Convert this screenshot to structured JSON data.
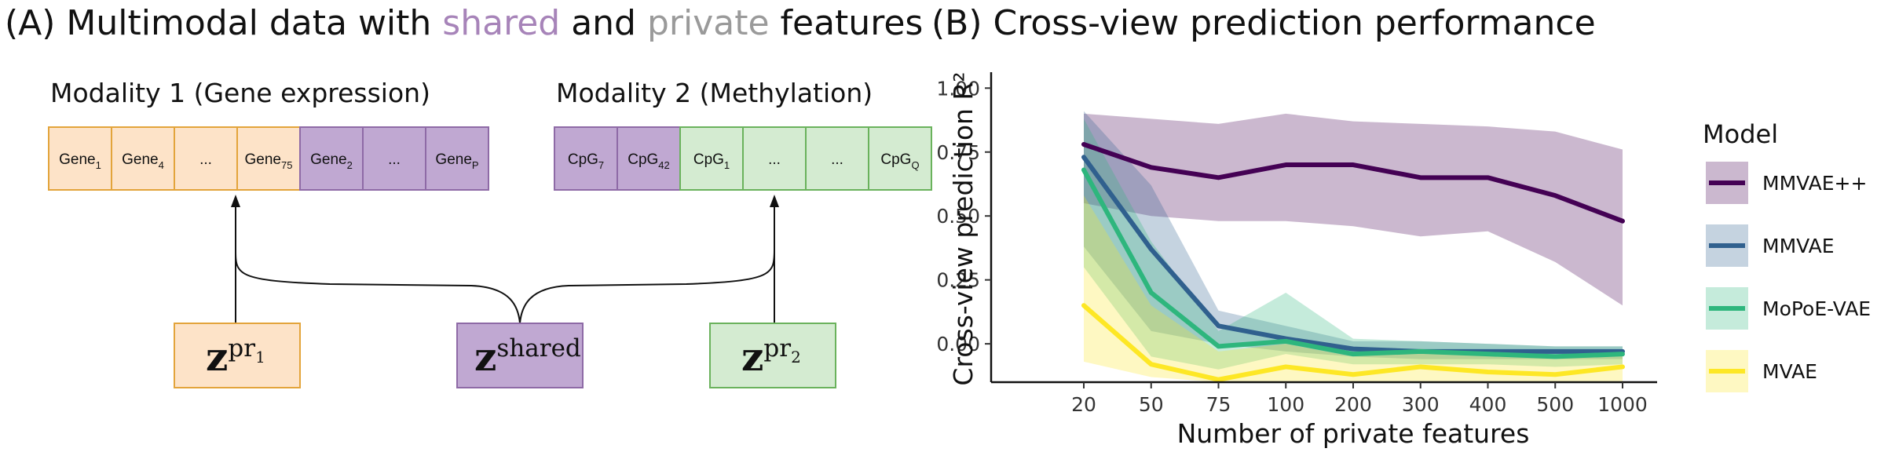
{
  "panel_a": {
    "title_prefix": "(A) Multimodal data with ",
    "title_shared": "shared",
    "title_mid": " and ",
    "title_private": "private",
    "title_suffix": " features",
    "modality1": {
      "label": "Modality 1 (Gene expression)",
      "cells": [
        {
          "base": "Gene",
          "sub": "1",
          "kind": "private"
        },
        {
          "base": "Gene",
          "sub": "4",
          "kind": "private"
        },
        {
          "base": "...",
          "sub": "",
          "kind": "private"
        },
        {
          "base": "Gene",
          "sub": "75",
          "kind": "private"
        },
        {
          "base": "Gene",
          "sub": "2",
          "kind": "shared"
        },
        {
          "base": "...",
          "sub": "",
          "kind": "shared"
        },
        {
          "base": "Gene",
          "sub": "P",
          "kind": "shared"
        }
      ]
    },
    "modality2": {
      "label": "Modality 2 (Methylation)",
      "cells": [
        {
          "base": "CpG",
          "sub": "7",
          "kind": "shared"
        },
        {
          "base": "CpG",
          "sub": "42",
          "kind": "shared"
        },
        {
          "base": "CpG",
          "sub": "1",
          "kind": "private"
        },
        {
          "base": "...",
          "sub": "",
          "kind": "private"
        },
        {
          "base": "...",
          "sub": "",
          "kind": "private"
        },
        {
          "base": "CpG",
          "sub": "Q",
          "kind": "private"
        }
      ]
    },
    "latents": {
      "z1": {
        "base": "z",
        "sup": "pr",
        "sub": "1"
      },
      "shared": {
        "base": "z",
        "sup": "shared"
      },
      "z2": {
        "base": "z",
        "sup": "pr",
        "sub": "2"
      }
    }
  },
  "panel_b": {
    "title": "(B) Cross-view prediction performance"
  },
  "colors": {
    "shared_fill": "#c0a8d2",
    "shared_stroke": "#8e6aa6",
    "m1_private_fill": "#fde3c8",
    "m1_private_stroke": "#e3a43b",
    "m2_private_fill": "#d4ebd1",
    "m2_private_stroke": "#6ab25c"
  },
  "chart_data": {
    "type": "line",
    "title": "",
    "xlabel": "Number of private features",
    "ylabel": "Cross-view prediction R²",
    "categories": [
      "20",
      "50",
      "75",
      "100",
      "200",
      "300",
      "400",
      "500",
      "1000"
    ],
    "ylim": [
      -0.15,
      1.05
    ],
    "yticks": [
      0.0,
      0.25,
      0.5,
      0.75,
      1.0
    ],
    "ytick_labels": [
      "0.00",
      "0.25",
      "0.50",
      "0.75",
      "1.00"
    ],
    "legend_title": "Model",
    "legend_position": "right",
    "series": [
      {
        "name": "MMVAE++",
        "color": "#440154",
        "values": [
          0.78,
          0.69,
          0.65,
          0.7,
          0.7,
          0.65,
          0.65,
          0.58,
          0.48
        ],
        "lower": [
          0.55,
          0.5,
          0.48,
          0.48,
          0.46,
          0.42,
          0.44,
          0.32,
          0.15
        ],
        "upper": [
          0.9,
          0.88,
          0.86,
          0.9,
          0.87,
          0.86,
          0.85,
          0.83,
          0.76
        ]
      },
      {
        "name": "MMVAE",
        "color": "#30608e",
        "values": [
          0.73,
          0.37,
          0.07,
          0.02,
          -0.02,
          -0.03,
          -0.03,
          -0.03,
          -0.03
        ],
        "lower": [
          0.38,
          0.05,
          0.0,
          -0.03,
          -0.05,
          -0.06,
          -0.06,
          -0.06,
          -0.06
        ],
        "upper": [
          0.91,
          0.62,
          0.13,
          0.07,
          0.01,
          0.01,
          0.0,
          -0.01,
          -0.01
        ]
      },
      {
        "name": "MoPoE-VAE",
        "color": "#2eb67d",
        "values": [
          0.68,
          0.2,
          -0.01,
          0.01,
          -0.04,
          -0.03,
          -0.04,
          -0.05,
          -0.04
        ],
        "lower": [
          0.3,
          -0.05,
          -0.1,
          -0.04,
          -0.08,
          -0.08,
          -0.08,
          -0.09,
          -0.08
        ],
        "upper": [
          0.88,
          0.4,
          0.05,
          0.2,
          0.02,
          0.01,
          0.0,
          -0.01,
          -0.01
        ]
      },
      {
        "name": "MVAE",
        "color": "#fde725",
        "values": [
          0.15,
          -0.08,
          -0.14,
          -0.09,
          -0.12,
          -0.09,
          -0.11,
          -0.12,
          -0.09
        ],
        "lower": [
          -0.07,
          -0.13,
          -0.15,
          -0.15,
          -0.15,
          -0.15,
          -0.15,
          -0.15,
          -0.15
        ],
        "upper": [
          0.58,
          0.15,
          -0.03,
          0.0,
          -0.05,
          -0.02,
          -0.04,
          -0.06,
          -0.04
        ]
      }
    ]
  }
}
